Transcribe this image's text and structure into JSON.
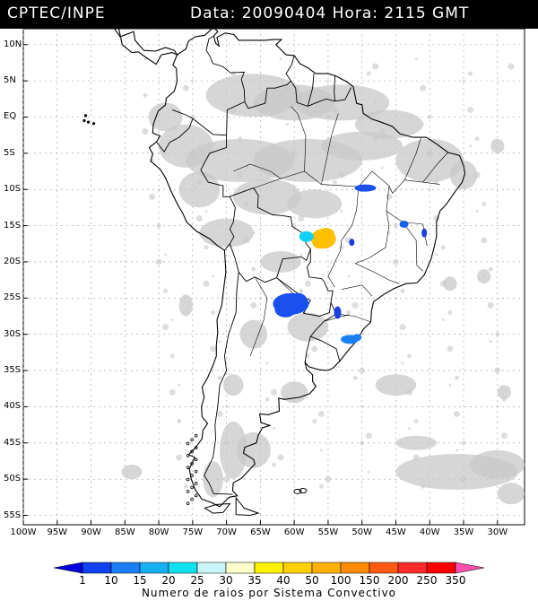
{
  "header": {
    "org": "CPTEC/INPE",
    "datetime": "Data: 20090404 Hora: 2115 GMT"
  },
  "latitude_labels": [
    "10N",
    "5N",
    "EQ",
    "5S",
    "10S",
    "15S",
    "20S",
    "25S",
    "30S",
    "35S",
    "40S",
    "45S",
    "50S",
    "55S"
  ],
  "longitude_labels": [
    "100W",
    "95W",
    "90W",
    "85W",
    "80W",
    "75W",
    "70W",
    "65W",
    "60W",
    "55W",
    "50W",
    "45W",
    "40W",
    "35W",
    "30W"
  ],
  "colorbar": {
    "caption": "Numero de raios por Sistema Convectivo",
    "labels": [
      "1",
      "10",
      "15",
      "20",
      "25",
      "30",
      "35",
      "40",
      "50",
      "100",
      "150",
      "200",
      "250",
      "350"
    ],
    "colors": [
      "#0000e0",
      "#1040f0",
      "#1a7ef5",
      "#18b0f5",
      "#10e0f0",
      "#c8f5f5",
      "#ffffcc",
      "#fff200",
      "#ffd000",
      "#ffb000",
      "#ff8c00",
      "#ff5a10",
      "#ff2a2a",
      "#ff0000",
      "#ff50b0"
    ]
  },
  "cloud_color": "#c8c8c8",
  "systems": [
    {
      "name": "sys-amazon-east",
      "lon": -49.5,
      "lat": -9.8,
      "color": "#1a50e8"
    },
    {
      "name": "sys-bahia",
      "lon": -43.8,
      "lat": -14.8,
      "color": "#1a60f0"
    },
    {
      "name": "sys-bahia-coast",
      "lon": -40.8,
      "lat": -16.0,
      "color": "#1a40e0"
    },
    {
      "name": "sys-goias",
      "lon": -51.5,
      "lat": -17.3,
      "color": "#1a3ae0"
    },
    {
      "name": "sys-mato-grosso-orange",
      "lon": -55.7,
      "lat": -16.8,
      "color": "#ffc000"
    },
    {
      "name": "sys-mato-grosso-cyan",
      "lon": -58.2,
      "lat": -16.5,
      "color": "#10d0f5"
    },
    {
      "name": "sys-paraguay",
      "lon": -60.5,
      "lat": -25.8,
      "color": "#1a50f0"
    },
    {
      "name": "sys-parana",
      "lon": -53.6,
      "lat": -27.0,
      "color": "#1a40e0"
    },
    {
      "name": "sys-rio-grande",
      "lon": -51.8,
      "lat": -30.7,
      "color": "#1a7ef5"
    }
  ]
}
